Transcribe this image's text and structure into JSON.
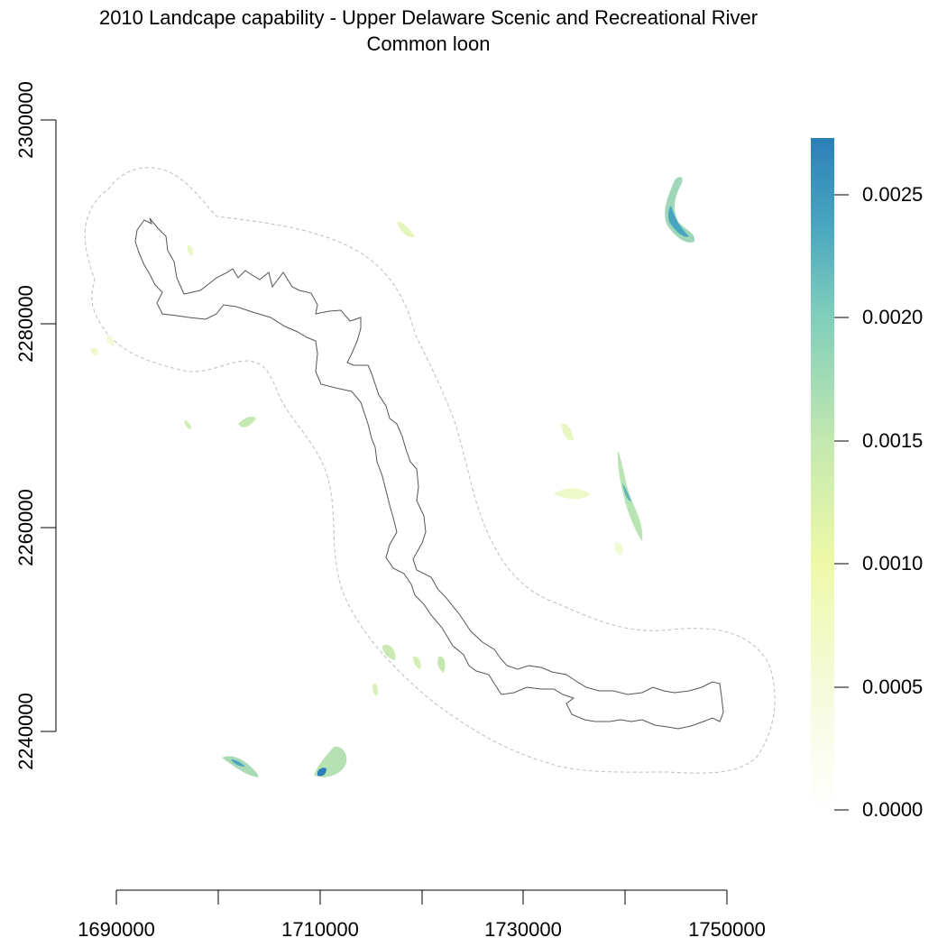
{
  "title": {
    "line1": "2010 Landcape capability - Upper Delaware Scenic and Recreational River",
    "line2": "Common loon"
  },
  "map": {
    "x_axis": {
      "ticks": [
        1690000,
        1710000,
        1730000,
        1750000
      ],
      "labels": [
        "1690000",
        "1710000",
        "1730000",
        "1750000"
      ]
    },
    "y_axis": {
      "ticks": [
        2240000,
        2260000,
        2280000,
        2300000
      ],
      "labels": [
        "2240000",
        "2260000",
        "2280000",
        "2300000"
      ]
    }
  },
  "legend": {
    "labels": [
      "0.0000",
      "0.0005",
      "0.0010",
      "0.0015",
      "0.0020",
      "0.0025"
    ],
    "colors": [
      "#ffffff",
      "#f4fbd2",
      "#eef9a8",
      "#cdebb3",
      "#7ecdbb",
      "#2c7fb8"
    ],
    "max_value": 0.00273
  },
  "colors": {
    "boundary": "#555555",
    "buffer": "#bdbdbd"
  }
}
